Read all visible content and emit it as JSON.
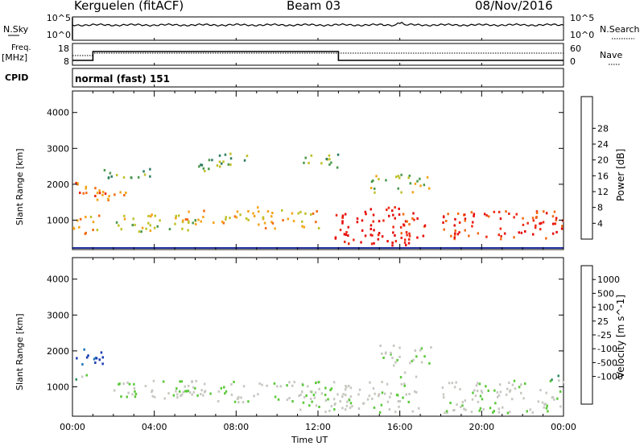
{
  "header": {
    "station": "Kerguelen (fitACF)",
    "beam": "Beam 03",
    "date": "08/Nov/2016"
  },
  "left_labels": {
    "nsky": "N.Sky",
    "freq": "Freq.",
    "mhz": "[MHz]",
    "cpid": "CPID"
  },
  "right_labels": {
    "nsearch": "N.Search",
    "nave": "Nave"
  },
  "cpid_text": "normal (fast) 151",
  "noise_ticks": [
    "10^5",
    "10^0"
  ],
  "freq_ticks": [
    "18",
    "8"
  ],
  "nave_ticks": [
    "60",
    "0"
  ],
  "time_ticks": [
    "00:00",
    "04:00",
    "08:00",
    "12:00",
    "16:00",
    "20:00",
    "00:00"
  ],
  "xlabel": "Time UT",
  "range_ticks": [
    "1000",
    "2000",
    "3000",
    "4000"
  ],
  "ylabel": "Slant Range [km]",
  "power_colorbar": {
    "label": "Power [dB]",
    "ticks": [
      "4",
      "8",
      "12",
      "16",
      "20",
      "24",
      "28"
    ],
    "colors": [
      "#0a1cf0",
      "#20469b",
      "#2e7d63",
      "#4b9a4b",
      "#bfc12a",
      "#f5a418",
      "#f26a14",
      "#ed2a12",
      "#e60b0b"
    ]
  },
  "velocity_colorbar": {
    "label": "Velocity [m s^-1]",
    "ticks": [
      "1000",
      "500",
      "100",
      "25",
      "-25",
      "-100",
      "-500",
      "-1000"
    ],
    "colors": [
      "#1b3db3",
      "#2474b6",
      "#2f8f63",
      "#5cc93a",
      "#c8c8c2",
      "#c8c8c2",
      "#f5c21c",
      "#f59a18",
      "#f26414",
      "#e61a10"
    ]
  },
  "chart_data": {
    "type": "heatmap",
    "x_range_hours": [
      0,
      24
    ],
    "y_range_km": [
      180,
      4600
    ],
    "power_blobs": [
      {
        "t0": 0.0,
        "t1": 2.6,
        "r0": 1550,
        "r1": 2100,
        "level": 6
      },
      {
        "t0": 0.0,
        "t1": 1.3,
        "r0": 600,
        "r1": 1200,
        "level": 5
      },
      {
        "t0": 1.5,
        "t1": 4.2,
        "r0": 2200,
        "r1": 2500,
        "level": 3
      },
      {
        "t0": 2.0,
        "t1": 6.0,
        "r0": 700,
        "r1": 1200,
        "level": 4
      },
      {
        "t0": 5.0,
        "t1": 9.0,
        "r0": 900,
        "r1": 1300,
        "level": 5
      },
      {
        "t0": 6.0,
        "t1": 8.5,
        "r0": 2400,
        "r1": 2900,
        "level": 3
      },
      {
        "t0": 9.0,
        "t1": 12.0,
        "r0": 800,
        "r1": 1400,
        "level": 5
      },
      {
        "t0": 11.0,
        "t1": 13.0,
        "r0": 2500,
        "r1": 2900,
        "level": 3
      },
      {
        "t0": 12.8,
        "t1": 16.5,
        "r0": 300,
        "r1": 1400,
        "level": 8
      },
      {
        "t0": 16.0,
        "t1": 17.2,
        "r0": 500,
        "r1": 1300,
        "level": 7
      },
      {
        "t0": 14.5,
        "t1": 17.5,
        "r0": 1800,
        "r1": 2300,
        "level": 4
      },
      {
        "t0": 18.0,
        "t1": 24.0,
        "r0": 500,
        "r1": 1300,
        "level": 7
      }
    ],
    "velocity_blobs": [
      {
        "t0": 0.0,
        "t1": 1.5,
        "r0": 1600,
        "r1": 2100,
        "level": 0
      },
      {
        "t0": 0.0,
        "t1": 1.0,
        "r0": 1200,
        "r1": 1400,
        "level": 3
      },
      {
        "t0": 2.0,
        "t1": 6.0,
        "r0": 700,
        "r1": 1200,
        "level": 4
      },
      {
        "t0": 5.0,
        "t1": 12.0,
        "r0": 600,
        "r1": 1200,
        "level": 4
      },
      {
        "t0": 11.0,
        "t1": 17.0,
        "r0": 300,
        "r1": 1200,
        "level": 4
      },
      {
        "t0": 15.0,
        "t1": 17.5,
        "r0": 1600,
        "r1": 2200,
        "level": 4
      },
      {
        "t0": 18.0,
        "t1": 24.0,
        "r0": 300,
        "r1": 1200,
        "level": 4
      },
      {
        "t0": 16.0,
        "t1": 16.8,
        "r0": 1300,
        "r1": 1500,
        "level": 3
      },
      {
        "t0": 23.0,
        "t1": 24.0,
        "r0": 1200,
        "r1": 1400,
        "level": 3
      }
    ]
  }
}
